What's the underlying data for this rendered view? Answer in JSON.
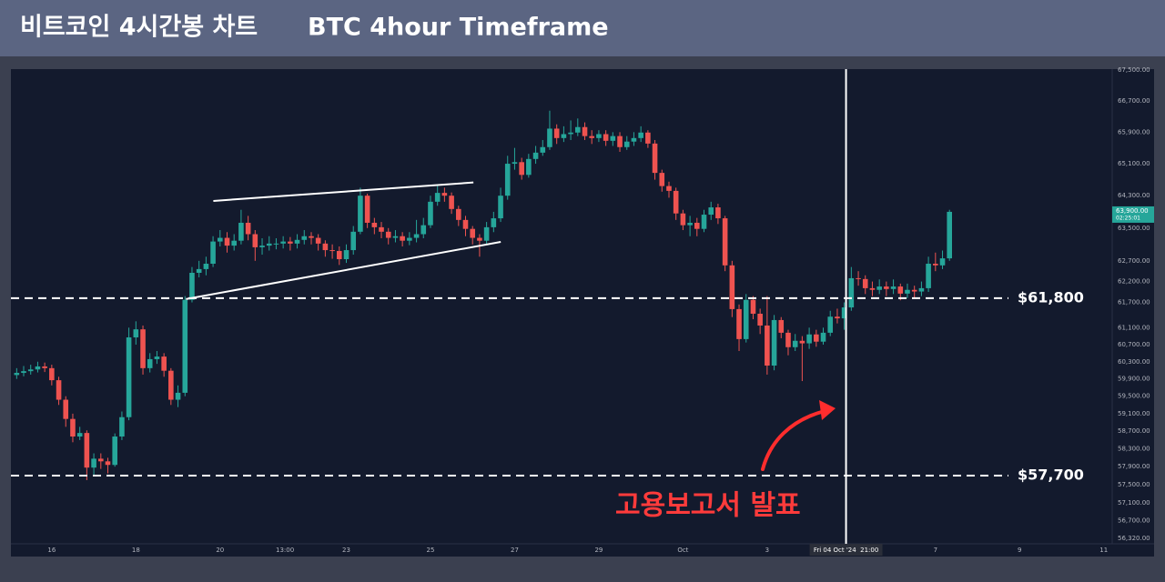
{
  "chart_data": {
    "type": "candlestick",
    "title": "비트코인 4시간봉 차트",
    "subtitle": "BTC 4hour Timeframe",
    "x": [
      15.167,
      15.333,
      15.5,
      15.667,
      15.833,
      16,
      16.167,
      16.333,
      16.5,
      16.667,
      16.833,
      17,
      17.167,
      17.333,
      17.5,
      17.667,
      17.833,
      18,
      18.167,
      18.333,
      18.5,
      18.667,
      18.833,
      19,
      19.167,
      19.333,
      19.5,
      19.667,
      19.833,
      20,
      20.167,
      20.333,
      20.5,
      20.667,
      20.833,
      21,
      21.167,
      21.333,
      21.5,
      21.667,
      21.833,
      22,
      22.167,
      22.333,
      22.5,
      22.667,
      22.833,
      23,
      23.167,
      23.333,
      23.5,
      23.667,
      23.833,
      24,
      24.167,
      24.333,
      24.5,
      24.667,
      24.833,
      25,
      25.167,
      25.333,
      25.5,
      25.667,
      25.833,
      26,
      26.167,
      26.333,
      26.5,
      26.667,
      26.833,
      27,
      27.167,
      27.333,
      27.5,
      27.667,
      27.833,
      28,
      28.167,
      28.333,
      28.5,
      28.667,
      28.833,
      29,
      29.167,
      29.333,
      29.5,
      29.667,
      29.833,
      30,
      30.167,
      30.333,
      30.5,
      30.667,
      30.833,
      31,
      31.167,
      31.333,
      31.5,
      31.667,
      31.833,
      32,
      32.167,
      32.333,
      32.5,
      32.667,
      32.833,
      33,
      33.167,
      33.333,
      33.5,
      33.667,
      33.833,
      34,
      34.167,
      34.333,
      34.5,
      34.667,
      34.833,
      35,
      35.167,
      35.333,
      35.5,
      35.667,
      35.833,
      36,
      36.167,
      36.333,
      36.5,
      36.667,
      36.833,
      37,
      37.167,
      37.333
    ],
    "open": [
      59990,
      60040,
      60080,
      60120,
      60190,
      60150,
      59870,
      59420,
      58980,
      58580,
      58660,
      57880,
      58080,
      58020,
      57940,
      58580,
      59020,
      60870,
      61060,
      60150,
      60360,
      60420,
      60090,
      59420,
      59580,
      61760,
      62410,
      62500,
      62630,
      63170,
      63260,
      63070,
      63190,
      63630,
      63350,
      63030,
      63070,
      63120,
      63120,
      63170,
      63120,
      63210,
      63300,
      63260,
      63120,
      62960,
      62940,
      62740,
      62960,
      63410,
      64300,
      63630,
      63520,
      63410,
      63260,
      63300,
      63190,
      63260,
      63350,
      63570,
      64150,
      64370,
      64300,
      63970,
      63700,
      63480,
      63260,
      63190,
      63520,
      63740,
      64300,
      65100,
      65140,
      64820,
      65220,
      65380,
      65520,
      65990,
      65750,
      65850,
      65890,
      66030,
      65800,
      65750,
      65850,
      65680,
      65800,
      65520,
      65660,
      65750,
      65890,
      65610,
      64870,
      64540,
      64420,
      63860,
      63570,
      63630,
      63480,
      63830,
      64010,
      63740,
      62590,
      61540,
      60830,
      61760,
      61430,
      61150,
      60210,
      61280,
      60980,
      60640,
      60790,
      60730,
      60940,
      60770,
      60980,
      61360,
      61320,
      61580,
      62280,
      62260,
      62040,
      62000,
      62080,
      62020,
      62080,
      61910,
      62000,
      61960,
      62040,
      62630,
      62590,
      62760
    ],
    "high": [
      60150,
      60200,
      60230,
      60300,
      60280,
      60230,
      59950,
      59500,
      59100,
      58800,
      58720,
      58200,
      58200,
      58100,
      58650,
      59150,
      61100,
      61250,
      61150,
      60500,
      60550,
      60500,
      60150,
      59750,
      61850,
      62550,
      62700,
      62800,
      63300,
      63450,
      63400,
      63350,
      63950,
      63800,
      63450,
      63250,
      63300,
      63250,
      63300,
      63280,
      63350,
      63450,
      63400,
      63350,
      63200,
      63100,
      63050,
      63100,
      63550,
      64500,
      64350,
      63750,
      63650,
      63500,
      63450,
      63400,
      63400,
      63700,
      63750,
      64300,
      64550,
      64500,
      64380,
      64050,
      63800,
      63550,
      63350,
      63650,
      63900,
      64500,
      65300,
      65500,
      65250,
      65350,
      65550,
      65700,
      66450,
      66100,
      66050,
      66200,
      66250,
      66150,
      65950,
      65950,
      65950,
      65900,
      65900,
      65800,
      65900,
      66050,
      65950,
      65700,
      64950,
      64650,
      64500,
      63950,
      63800,
      63750,
      63950,
      64150,
      64100,
      63800,
      62700,
      61650,
      61900,
      61850,
      61550,
      61850,
      61400,
      61350,
      61050,
      60950,
      60900,
      61100,
      61050,
      61100,
      61500,
      61550,
      61700,
      62550,
      62450,
      62350,
      62200,
      62250,
      62200,
      62250,
      62150,
      62150,
      62100,
      62200,
      62800,
      62900,
      62950,
      63950
    ],
    "low": [
      59900,
      59960,
      60000,
      60050,
      60060,
      59750,
      59300,
      58800,
      58450,
      58500,
      57600,
      57700,
      57850,
      57750,
      57900,
      58500,
      58950,
      60700,
      60000,
      60050,
      60250,
      59950,
      59300,
      59250,
      59500,
      61700,
      62300,
      62350,
      62550,
      63050,
      62900,
      62950,
      63100,
      63200,
      62700,
      62850,
      62950,
      62980,
      63000,
      62950,
      63000,
      63100,
      63100,
      62950,
      62800,
      62750,
      62600,
      62650,
      62850,
      63350,
      63500,
      63350,
      63250,
      63100,
      63150,
      63050,
      63080,
      63150,
      63250,
      63500,
      64050,
      64150,
      63850,
      63550,
      63300,
      63100,
      62800,
      63100,
      63400,
      63650,
      64200,
      64950,
      64700,
      64750,
      65100,
      65300,
      65450,
      65600,
      65650,
      65700,
      65800,
      65700,
      65600,
      65650,
      65550,
      65550,
      65400,
      65450,
      65550,
      65650,
      65500,
      64700,
      64400,
      64250,
      63700,
      63450,
      63300,
      63300,
      63400,
      63700,
      63600,
      62450,
      61350,
      60550,
      60750,
      61300,
      60950,
      60000,
      60100,
      60850,
      60450,
      60550,
      59850,
      60600,
      60650,
      60700,
      60900,
      61200,
      61050,
      61500,
      62100,
      61900,
      61850,
      61900,
      61850,
      61900,
      61750,
      61800,
      61800,
      61850,
      61950,
      62450,
      62500,
      62700
    ],
    "close": [
      60040,
      60080,
      60120,
      60190,
      60150,
      59870,
      59420,
      58980,
      58580,
      58660,
      57880,
      58080,
      58020,
      57940,
      58580,
      59020,
      60870,
      61060,
      60150,
      60360,
      60420,
      60090,
      59420,
      59580,
      61760,
      62410,
      62500,
      62630,
      63170,
      63260,
      63070,
      63190,
      63630,
      63350,
      63030,
      63070,
      63120,
      63120,
      63170,
      63120,
      63210,
      63300,
      63260,
      63120,
      62960,
      62940,
      62740,
      62960,
      63410,
      64300,
      63630,
      63520,
      63410,
      63260,
      63300,
      63190,
      63260,
      63350,
      63570,
      64150,
      64370,
      64300,
      63970,
      63700,
      63480,
      63260,
      63190,
      63520,
      63740,
      64300,
      65100,
      65140,
      64820,
      65220,
      65380,
      65520,
      65990,
      65750,
      65850,
      65890,
      66030,
      65800,
      65750,
      65850,
      65680,
      65800,
      65520,
      65660,
      65750,
      65890,
      65610,
      64870,
      64540,
      64420,
      63860,
      63570,
      63630,
      63480,
      63830,
      64010,
      63740,
      62590,
      61540,
      60830,
      61760,
      61430,
      61150,
      60210,
      61280,
      60980,
      60640,
      60790,
      60730,
      60940,
      60770,
      60980,
      61360,
      61320,
      61580,
      62280,
      62260,
      62040,
      62000,
      62080,
      62020,
      62080,
      61910,
      62000,
      61960,
      62040,
      62630,
      62590,
      62760,
      63900
    ],
    "up_color": "#26a69a",
    "down_color": "#ef5350",
    "log_y": true,
    "grid": false,
    "xlim": [
      15.03,
      41.2
    ],
    "ylim": [
      56060,
      67670
    ],
    "xticks": [
      16,
      18,
      20,
      {
        "value": 21.542,
        "label": "13:00"
      },
      23,
      25,
      27,
      29,
      {
        "value": 31,
        "label": "Oct"
      },
      {
        "value": 33,
        "label": "3"
      },
      {
        "value": 37,
        "label": "7"
      },
      {
        "value": 39,
        "label": "9"
      },
      {
        "value": 41,
        "label": "11"
      }
    ],
    "yticks": [
      {
        "value": 67500,
        "label": "67,500.00"
      },
      {
        "value": 66700,
        "label": "66,700.00"
      },
      {
        "value": 65900,
        "label": "65,900.00"
      },
      {
        "value": 65100,
        "label": "65,100.00"
      },
      {
        "value": 64300,
        "label": "64,300.00"
      },
      {
        "value": 63500,
        "label": "63,500.00"
      },
      {
        "value": 62700,
        "label": "62,700.00"
      },
      {
        "value": 62200,
        "label": "62,200.00"
      },
      {
        "value": 61700,
        "label": "61,700.00"
      },
      {
        "value": 61100,
        "label": "61,100.00"
      },
      {
        "value": 60700,
        "label": "60,700.00"
      },
      {
        "value": 60300,
        "label": "60,300.00"
      },
      {
        "value": 59900,
        "label": "59,900.00"
      },
      {
        "value": 59500,
        "label": "59,500.00"
      },
      {
        "value": 59100,
        "label": "59,100.00"
      },
      {
        "value": 58700,
        "label": "58,700.00"
      },
      {
        "value": 58300,
        "label": "58,300.00"
      },
      {
        "value": 57900,
        "label": "57,900.00"
      },
      {
        "value": 57500,
        "label": "57,500.00"
      },
      {
        "value": 57100,
        "label": "57,100.00"
      },
      {
        "value": 56700,
        "label": "56,700.00"
      },
      {
        "value": 56320,
        "label": "56,320.00"
      }
    ],
    "levels": [
      {
        "value": 61800,
        "label": "$61,800"
      },
      {
        "value": 57700,
        "label": "$57,700"
      }
    ],
    "trendlines": [
      {
        "x": [
          19.84,
          26.02
        ],
        "y": [
          64170,
          64630
        ]
      },
      {
        "x": [
          19.19,
          26.67
        ],
        "y": [
          61780,
          63160
        ]
      }
    ],
    "crosshair": {
      "x": 34.875,
      "label": "Fri 04 Oct '24  21:00"
    },
    "last_price": {
      "value": 63900,
      "label": "63,900.00",
      "countdown": "02:25:01"
    },
    "annotation": "고용보고서 발표"
  }
}
